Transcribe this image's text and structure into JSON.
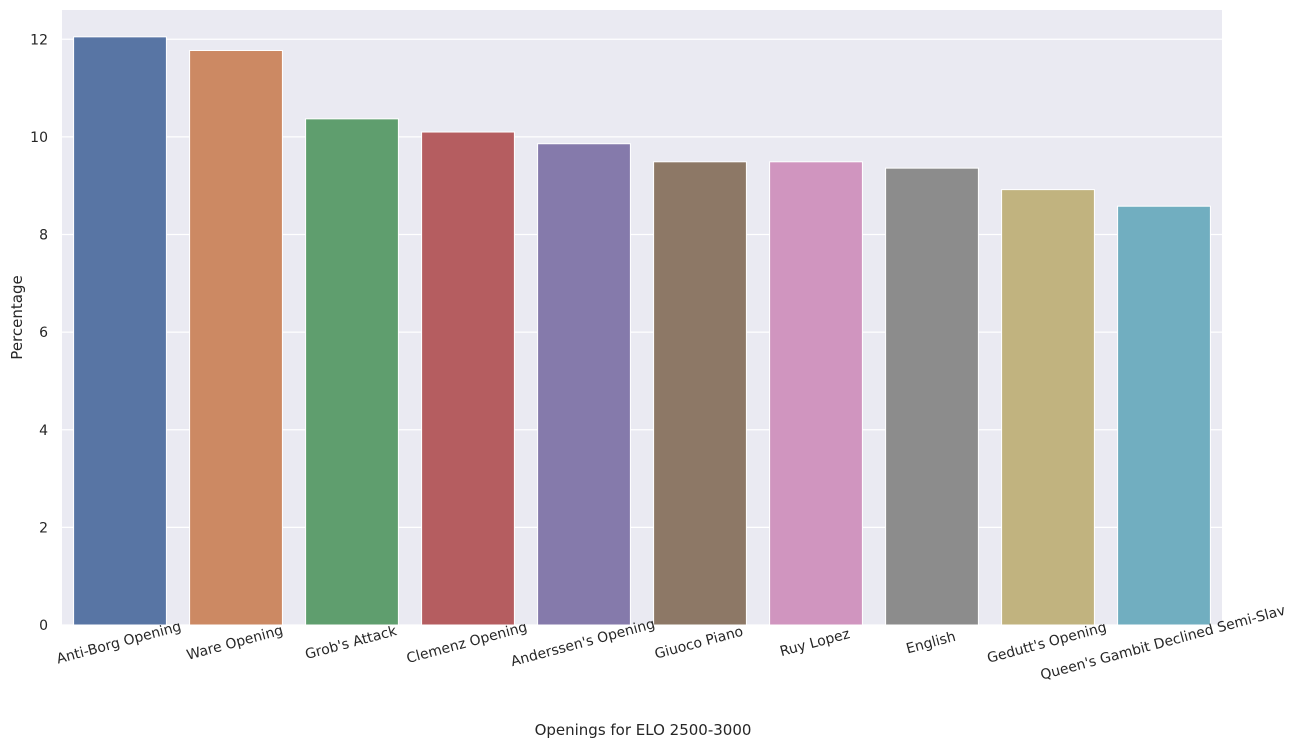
{
  "chart_data": {
    "type": "bar",
    "title": "",
    "xlabel": "Openings for ELO 2500-3000",
    "ylabel": "Percentage",
    "categories": [
      "Anti-Borg Opening",
      "Ware Opening",
      "Grob's Attack",
      "Clemenz Opening",
      "Anderssen's Opening",
      "Giuoco Piano",
      "Ruy Lopez",
      "English",
      "Gedutt's Opening",
      "Queen's Gambit Declined Semi-Slav"
    ],
    "values": [
      12.05,
      11.77,
      10.37,
      10.1,
      9.86,
      9.49,
      9.49,
      9.36,
      8.92,
      8.58
    ],
    "colors": [
      "#5875a4",
      "#cc8963",
      "#5f9e6e",
      "#b55d60",
      "#857aab",
      "#8d7866",
      "#d095bf",
      "#8c8c8c",
      "#c1b37f",
      "#71aec0"
    ],
    "ylim": [
      0,
      12.6
    ],
    "yticks": [
      0,
      2,
      4,
      6,
      8,
      10,
      12
    ],
    "grid": true,
    "background": "#eaeaf2",
    "grid_color": "#ffffff"
  }
}
